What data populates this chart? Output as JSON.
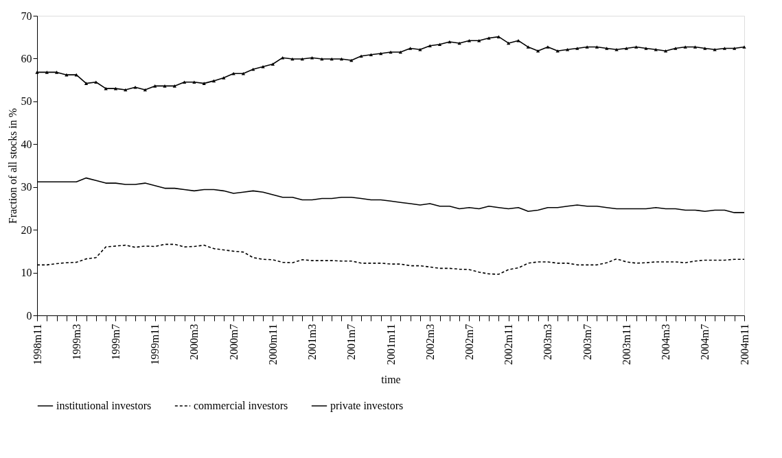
{
  "chart_data": {
    "type": "line",
    "xlabel": "time",
    "ylabel": "Fraction of all stocks in %",
    "categories": [
      "1998m11",
      null,
      null,
      null,
      "1999m3",
      null,
      null,
      null,
      "1999m7",
      null,
      null,
      null,
      "1999m11",
      null,
      null,
      null,
      "2000m3",
      null,
      null,
      null,
      "2000m7",
      null,
      null,
      null,
      "2000m11",
      null,
      null,
      null,
      "2001m3",
      null,
      null,
      null,
      "2001m7",
      null,
      null,
      null,
      "2001m11",
      null,
      null,
      null,
      "2002m3",
      null,
      null,
      null,
      "2002m7",
      null,
      null,
      null,
      "2002m11",
      null,
      null,
      null,
      "2003m3",
      null,
      null,
      null,
      "2003m7",
      null,
      null,
      null,
      "2003m11",
      null,
      null,
      null,
      "2004m3",
      null,
      null,
      null,
      "2004m7",
      null,
      null,
      null,
      "2004m11"
    ],
    "ylim": [
      0,
      70
    ],
    "yticks": [
      0,
      10,
      20,
      30,
      40,
      50,
      60,
      70
    ],
    "grid": false,
    "legend": "bottom",
    "series": [
      {
        "name": "institutional investors",
        "color": "#000000",
        "marker": "triangle",
        "line_style": "solid",
        "values": [
          56.8,
          56.8,
          56.8,
          56.2,
          56.2,
          54.2,
          54.5,
          53.0,
          53.0,
          52.7,
          53.3,
          52.7,
          53.6,
          53.6,
          53.6,
          54.5,
          54.5,
          54.2,
          54.8,
          55.5,
          56.5,
          56.5,
          57.5,
          58.1,
          58.7,
          60.2,
          59.9,
          59.9,
          60.2,
          59.9,
          59.9,
          59.9,
          59.6,
          60.6,
          60.9,
          61.2,
          61.5,
          61.5,
          62.4,
          62.1,
          63.0,
          63.3,
          63.9,
          63.6,
          64.2,
          64.2,
          64.8,
          65.1,
          63.6,
          64.2,
          62.7,
          61.8,
          62.7,
          61.8,
          62.1,
          62.4,
          62.7,
          62.7,
          62.4,
          62.1,
          62.4,
          62.7,
          62.4,
          62.1,
          61.8,
          62.4,
          62.7,
          62.7,
          62.4,
          62.1,
          62.4,
          62.4,
          62.7
        ]
      },
      {
        "name": "commercial investors",
        "color": "#000000",
        "marker": "none",
        "line_style": "dashed",
        "values": [
          11.8,
          11.8,
          12.1,
          12.3,
          12.4,
          13.2,
          13.5,
          16.0,
          16.2,
          16.4,
          15.9,
          16.2,
          16.1,
          16.6,
          16.6,
          16.0,
          16.1,
          16.4,
          15.6,
          15.3,
          15.0,
          14.8,
          13.5,
          13.1,
          13.0,
          12.4,
          12.3,
          13.0,
          12.8,
          12.8,
          12.8,
          12.7,
          12.7,
          12.2,
          12.2,
          12.2,
          12.0,
          12.0,
          11.6,
          11.6,
          11.3,
          11.0,
          11.0,
          10.8,
          10.7,
          10.1,
          9.7,
          9.6,
          10.7,
          11.1,
          12.2,
          12.5,
          12.5,
          12.2,
          12.2,
          11.8,
          11.8,
          11.8,
          12.3,
          13.2,
          12.5,
          12.2,
          12.3,
          12.5,
          12.5,
          12.5,
          12.3,
          12.7,
          12.9,
          12.9,
          12.9,
          13.1,
          13.1
        ]
      },
      {
        "name": "private investors",
        "color": "#000000",
        "marker": "none",
        "line_style": "solid",
        "values": [
          31.2,
          31.2,
          31.2,
          31.2,
          31.2,
          32.1,
          31.5,
          30.9,
          30.9,
          30.6,
          30.6,
          30.9,
          30.3,
          29.7,
          29.7,
          29.4,
          29.1,
          29.4,
          29.4,
          29.1,
          28.5,
          28.8,
          29.1,
          28.8,
          28.2,
          27.6,
          27.6,
          27.0,
          27.0,
          27.3,
          27.3,
          27.6,
          27.6,
          27.3,
          27.0,
          27.0,
          26.7,
          26.4,
          26.1,
          25.8,
          26.1,
          25.5,
          25.5,
          24.9,
          25.2,
          24.9,
          25.5,
          25.2,
          24.9,
          25.2,
          24.3,
          24.6,
          25.2,
          25.2,
          25.5,
          25.8,
          25.5,
          25.5,
          25.2,
          24.9,
          24.9,
          24.9,
          24.9,
          25.2,
          24.9,
          24.9,
          24.6,
          24.6,
          24.3,
          24.6,
          24.6,
          24.0,
          24.0
        ]
      }
    ]
  }
}
